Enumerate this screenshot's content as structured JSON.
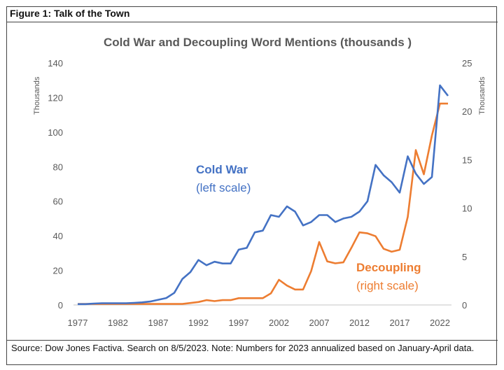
{
  "figure_title": "Figure 1: Talk of the Town",
  "source_note": "Source: Dow Jones Factiva.  Search on 8/5/2023.  Note: Numbers for 2023 annualized based on January-April data.",
  "chart_data": {
    "type": "line",
    "title": "Cold War and Decoupling Word Mentions (thousands )",
    "ylabel_left": "Thousands",
    "ylabel_right": "Thousands",
    "ylim_left": [
      0,
      140
    ],
    "ylim_right": [
      0,
      25
    ],
    "yticks_left": [
      "0",
      "20",
      "40",
      "60",
      "80",
      "100",
      "120",
      "140"
    ],
    "yticks_right": [
      "0",
      "5",
      "10",
      "15",
      "20",
      "25"
    ],
    "xticks": [
      "1977",
      "1982",
      "1987",
      "1992",
      "1997",
      "2002",
      "2007",
      "2012",
      "2017",
      "2022"
    ],
    "grid": false,
    "x": [
      1977,
      1978,
      1979,
      1980,
      1981,
      1982,
      1983,
      1984,
      1985,
      1986,
      1987,
      1988,
      1989,
      1990,
      1991,
      1992,
      1993,
      1994,
      1995,
      1996,
      1997,
      1998,
      1999,
      2000,
      2001,
      2002,
      2003,
      2004,
      2005,
      2006,
      2007,
      2008,
      2009,
      2010,
      2011,
      2012,
      2013,
      2014,
      2015,
      2016,
      2017,
      2018,
      2019,
      2020,
      2021,
      2022,
      2023
    ],
    "series": [
      {
        "label": "Cold War",
        "sublabel": "(left scale)",
        "axis": "left",
        "color": "#4472C4",
        "values": [
          0.5,
          0.5,
          0.8,
          1,
          1,
          1,
          1,
          1.2,
          1.5,
          2,
          3,
          4,
          7,
          15,
          19,
          26,
          23,
          25,
          24,
          24,
          32,
          33,
          42,
          43,
          52,
          51,
          57,
          54,
          46,
          48,
          52,
          52,
          48,
          50,
          51,
          54,
          60,
          81,
          75,
          71,
          65,
          86,
          76,
          70,
          74,
          127,
          121
        ]
      },
      {
        "label": "Decoupling",
        "sublabel": "(right scale)",
        "axis": "right",
        "color": "#ED7D31",
        "values": [
          0.1,
          0.1,
          0.1,
          0.1,
          0.1,
          0.1,
          0.1,
          0.1,
          0.1,
          0.1,
          0.1,
          0.1,
          0.1,
          0.1,
          0.2,
          0.3,
          0.5,
          0.4,
          0.5,
          0.5,
          0.7,
          0.7,
          0.7,
          0.7,
          1.2,
          2.6,
          2.0,
          1.6,
          1.6,
          3.5,
          6.5,
          4.5,
          4.3,
          4.4,
          5.9,
          7.5,
          7.4,
          7.1,
          5.8,
          5.5,
          5.7,
          9.1,
          16,
          13.5,
          17.5,
          20.8,
          20.8
        ]
      }
    ]
  }
}
